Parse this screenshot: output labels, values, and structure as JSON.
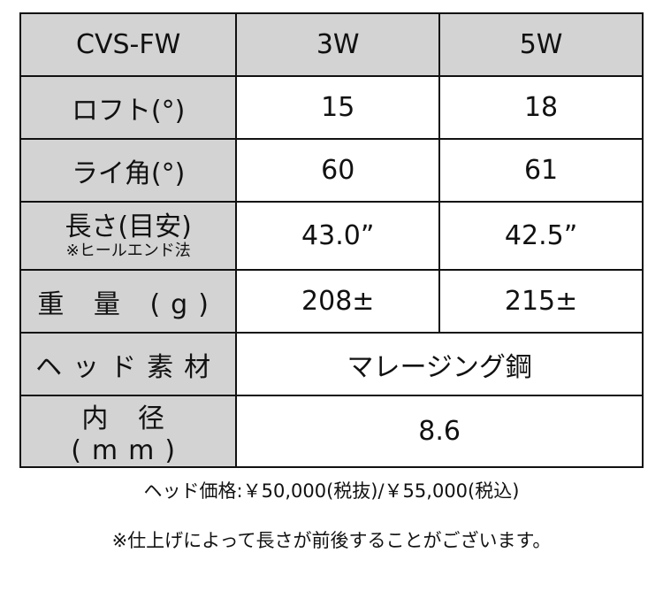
{
  "table": {
    "header": {
      "label": "CVS-FW",
      "col1": "3W",
      "col2": "5W"
    },
    "rows": [
      {
        "label": "ロフト(°)",
        "v1": "15",
        "v2": "18"
      },
      {
        "label": "ライ角(°)",
        "v1": "60",
        "v2": "61"
      },
      {
        "label": "長さ(目安)",
        "sublabel": "※ヒールエンド法",
        "v1": "43.0”",
        "v2": "42.5”"
      },
      {
        "label": "重 量 (g)",
        "v1": "208±",
        "v2": "215±"
      },
      {
        "label": "ヘッド素材",
        "value": "マレージング鋼"
      },
      {
        "label": "内 径 (mm)",
        "value": "8.6"
      }
    ],
    "header_bg": "#d3d3d3"
  },
  "notes": {
    "price": "ヘッド価格:￥50,000(税抜)/￥55,000(税込)",
    "disclaimer": "※仕上げによって長さが前後することがございます。"
  }
}
